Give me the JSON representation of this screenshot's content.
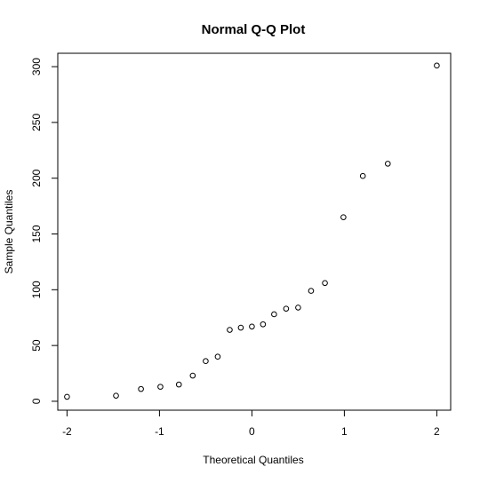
{
  "chart_data": {
    "type": "scatter",
    "title": "Normal Q-Q Plot",
    "xlabel": "Theoretical Quantiles",
    "ylabel": "Sample Quantiles",
    "xlim": [
      -2.1,
      2.15
    ],
    "ylim": [
      -8,
      312
    ],
    "x_ticks": [
      -2,
      -1,
      0,
      1,
      2
    ],
    "x_tick_labels": [
      "-2",
      "-1",
      "0",
      "1",
      "2"
    ],
    "y_ticks": [
      0,
      50,
      100,
      150,
      200,
      250,
      300
    ],
    "y_tick_labels": [
      "0",
      "50",
      "100",
      "150",
      "200",
      "250",
      "300"
    ],
    "grid": false,
    "marker": "open-circle",
    "x": [
      -2.0,
      -1.47,
      -1.2,
      -0.99,
      -0.79,
      -0.64,
      -0.5,
      -0.37,
      -0.24,
      -0.12,
      0.0,
      0.12,
      0.24,
      0.37,
      0.5,
      0.64,
      0.79,
      0.99,
      1.2,
      1.47,
      2.0
    ],
    "y": [
      4,
      5,
      11,
      13,
      15,
      23,
      36,
      40,
      64,
      66,
      67,
      69,
      78,
      83,
      84,
      99,
      106,
      165,
      202,
      213,
      301
    ]
  }
}
